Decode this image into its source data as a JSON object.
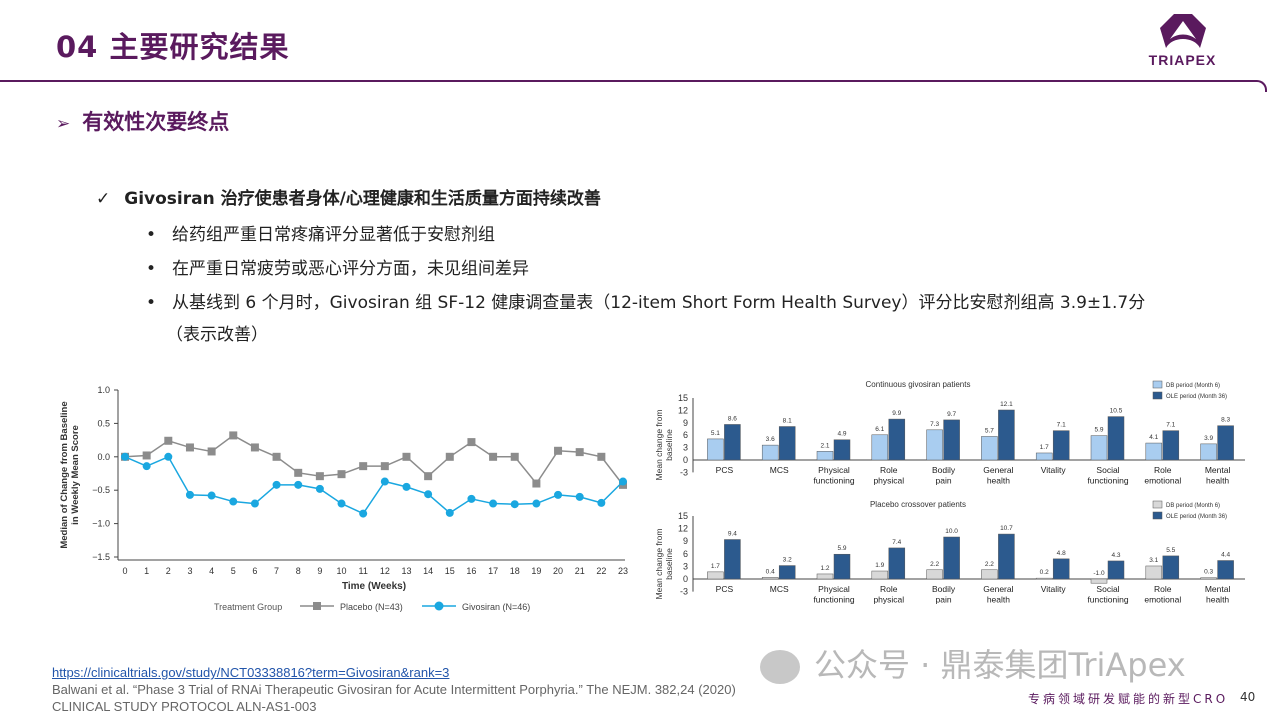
{
  "header": {
    "title": "04 主要研究结果",
    "logo_text": "TRIAPEX"
  },
  "section": {
    "arrow": "➢",
    "title": "有效性次要终点"
  },
  "main_point": {
    "check": "✓",
    "text": "Givosiran 治疗使患者身体/心理健康和生活质量方面持续改善"
  },
  "bullets": [
    {
      "dot": "•",
      "text": "给药组严重日常疼痛评分显著低于安慰剂组"
    },
    {
      "dot": "•",
      "text": "在严重日常疲劳或恶心评分方面，未见组间差异"
    },
    {
      "dot": "•",
      "text": "从基线到 6 个月时，Givosiran 组 SF-12 健康调查量表（12-item Short Form Health Survey）评分比安慰剂组高 3.9±1.7分"
    },
    {
      "dot": "",
      "text": "（表示改善）"
    }
  ],
  "chart_data": [
    {
      "type": "line",
      "title": "",
      "xlabel": "Time (Weeks)",
      "ylabel": "Median of Change from Baseline in Weekly Mean Score",
      "ylim": [
        -1.5,
        1.0
      ],
      "yticks": [
        "1.0",
        "0.5",
        "0.0",
        "−0.5",
        "−1.0",
        "−1.5"
      ],
      "x": [
        0,
        1,
        2,
        3,
        4,
        5,
        6,
        7,
        8,
        9,
        10,
        11,
        12,
        13,
        14,
        15,
        16,
        17,
        18,
        19,
        20,
        21,
        22,
        23
      ],
      "legend_title": "Treatment Group",
      "series": [
        {
          "name": "Placebo (N=43)",
          "color": "#8c8c8c",
          "marker": "square",
          "values": [
            0,
            0.02,
            0.24,
            0.14,
            0.08,
            0.32,
            0.14,
            0,
            -0.24,
            -0.29,
            -0.26,
            -0.14,
            -0.14,
            0,
            -0.29,
            0,
            0.22,
            0,
            0,
            -0.4,
            0.09,
            0.07,
            0,
            -0.42
          ]
        },
        {
          "name": "Givosiran (N=46)",
          "color": "#1aa7e0",
          "marker": "circle",
          "values": [
            0,
            -0.14,
            0,
            -0.57,
            -0.58,
            -0.67,
            -0.7,
            -0.42,
            -0.42,
            -0.48,
            -0.7,
            -0.85,
            -0.37,
            -0.45,
            -0.56,
            -0.84,
            -0.63,
            -0.7,
            -0.71,
            -0.7,
            -0.57,
            -0.6,
            -0.69,
            -0.37
          ]
        }
      ]
    },
    {
      "type": "bar",
      "title": "Continuous givosiran patients",
      "ylabel": "Mean change from baseline",
      "ylim": [
        -3,
        15
      ],
      "yticks": [
        "15",
        "12",
        "9",
        "6",
        "3",
        "0",
        "-3"
      ],
      "categories": [
        [
          "PCS"
        ],
        [
          "MCS"
        ],
        [
          "Physical",
          "functioning"
        ],
        [
          "Role",
          "physical"
        ],
        [
          "Bodily",
          "pain"
        ],
        [
          "General",
          "health"
        ],
        [
          "Vitality"
        ],
        [
          "Social",
          "functioning"
        ],
        [
          "Role",
          "emotional"
        ],
        [
          "Mental",
          "health"
        ]
      ],
      "series": [
        {
          "name": "DB period (Month 6)",
          "color": "#a9cdf0",
          "labels": [
            "5.1",
            "3.6",
            "2.1",
            "6.1",
            "7.3",
            "5.7",
            "1.7",
            "5.9",
            "4.1",
            "3.9"
          ],
          "values": [
            5.1,
            3.6,
            2.1,
            6.1,
            7.3,
            5.7,
            1.7,
            5.9,
            4.1,
            3.9
          ]
        },
        {
          "name": "OLE period (Month 36)",
          "color": "#2c5a8e",
          "labels": [
            "8.6",
            "8.1",
            "4.9",
            "9.9",
            "9.7",
            "12.1",
            "7.1",
            "10.5",
            "7.1",
            "8.3"
          ],
          "values": [
            8.6,
            8.1,
            4.9,
            9.9,
            9.7,
            12.1,
            7.1,
            10.5,
            7.1,
            8.3
          ]
        }
      ]
    },
    {
      "type": "bar",
      "title": "Placebo crossover patients",
      "ylabel": "Mean change from baseline",
      "ylim": [
        -3,
        15
      ],
      "yticks": [
        "15",
        "12",
        "9",
        "6",
        "3",
        "0",
        "-3"
      ],
      "categories": [
        [
          "PCS"
        ],
        [
          "MCS"
        ],
        [
          "Physical",
          "functioning"
        ],
        [
          "Role",
          "physical"
        ],
        [
          "Bodily",
          "pain"
        ],
        [
          "General",
          "health"
        ],
        [
          "Vitality"
        ],
        [
          "Social",
          "functioning"
        ],
        [
          "Role",
          "emotional"
        ],
        [
          "Mental",
          "health"
        ]
      ],
      "series": [
        {
          "name": "DB period (Month 6)",
          "color": "#d8d8d8",
          "labels": [
            "1.7",
            "0.4",
            "1.2",
            "1.9",
            "2.2",
            "2.2",
            "0.2",
            "-1.0",
            "3.1",
            "0.3"
          ],
          "values": [
            1.7,
            0.4,
            1.2,
            1.9,
            2.2,
            2.2,
            0.2,
            -1.0,
            3.1,
            0.3
          ]
        },
        {
          "name": "OLE period (Month 36)",
          "color": "#2c5a8e",
          "labels": [
            "9.4",
            "3.2",
            "5.9",
            "7.4",
            "10.0",
            "10.7",
            "4.8",
            "4.3",
            "5.5",
            "4.4"
          ],
          "values": [
            9.4,
            3.2,
            5.9,
            7.4,
            10.0,
            10.7,
            4.8,
            4.3,
            5.5,
            4.4
          ]
        }
      ]
    }
  ],
  "references": {
    "link": "https://clinicaltrials.gov/study/NCT03338816?term=Givosiran&rank=3",
    "citation": "Balwani et al. “Phase 3 Trial of RNAi Therapeutic Givosiran for Acute Intermittent Porphyria.” The NEJM. 382,24 (2020)",
    "protocol": "CLINICAL STUDY PROTOCOL  ALN-AS1-003"
  },
  "watermark": "公众号 · 鼎泰集团TriApex",
  "footer": {
    "slogan": "专病领域研发赋能的新型CRO",
    "page": "40"
  }
}
